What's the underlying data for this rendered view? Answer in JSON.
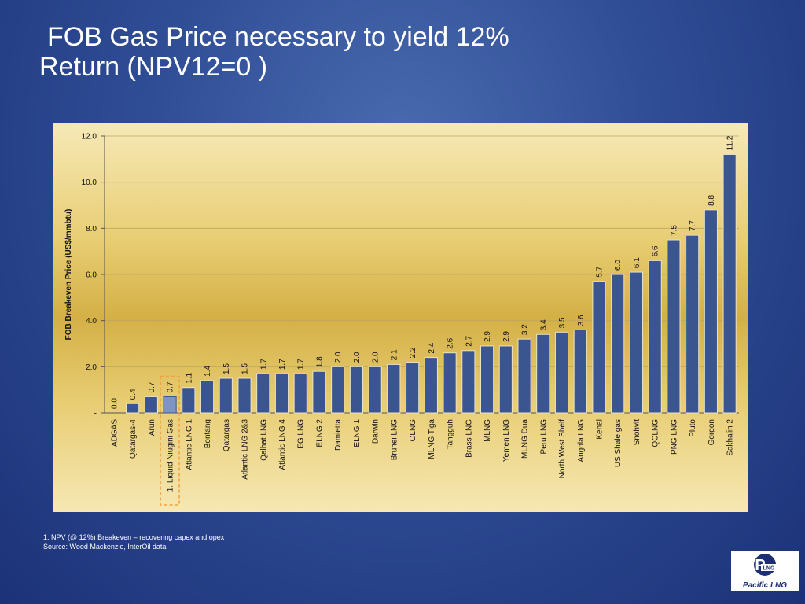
{
  "title_line1": "FOB Gas Price necessary to  yield 12%",
  "title_line2": "Return  (NPV12=0 )",
  "footnote_line1": "1. NPV (@ 12%) Breakeven – recovering capex and opex",
  "footnote_line2": "Source: Wood Mackenzie, InterOil data",
  "logo": {
    "mark": "P",
    "mark_sub": "LNG",
    "name": "Pacific LNG"
  },
  "colors": {
    "bar": "#3b5591",
    "highlight_bar": "#7e95c4",
    "highlight_outline": "#f2a03a"
  },
  "chart_data": {
    "type": "bar",
    "ylabel": "FOB Breakeven Price (US$/mmbtu)",
    "ylim": [
      0,
      12
    ],
    "yticks": [
      0,
      2,
      4,
      6,
      8,
      10,
      12
    ],
    "ytick_labels": [
      "-",
      "2.0",
      "4.0",
      "6.0",
      "8.0",
      "10.0",
      "12.0"
    ],
    "grid": true,
    "highlight_category": "1. Liquid Niugini Gas",
    "categories": [
      "ADGAS",
      "Qatargas-4",
      "Arun",
      "1. Liquid Niugini Gas",
      "Atlantic LNG 1",
      "Bontang",
      "Qatargas",
      "Atlantic LNG 2&3",
      "Qalhat LNG",
      "Atlantic LNG 4",
      "EG LNG",
      "ELNG 2",
      "Damietta",
      "ELNG 1",
      "Darwin",
      "Brunei LNG",
      "OLNG",
      "MLNG Tiga",
      "Tangguh",
      "Brass LNG",
      "MLNG",
      "Yemen LNG",
      "MLNG Dua",
      "Peru LNG",
      "North West Shelf",
      "Angola LNG",
      "Kenai",
      "US Shale gas",
      "Snohvit",
      "QCLNG",
      "PNG LNG",
      "Pluto",
      "Gorgon",
      "Sakhalin 2"
    ],
    "values": [
      0.0,
      0.4,
      0.7,
      0.7,
      1.1,
      1.4,
      1.5,
      1.5,
      1.7,
      1.7,
      1.7,
      1.8,
      2.0,
      2.0,
      2.0,
      2.1,
      2.2,
      2.4,
      2.6,
      2.7,
      2.9,
      2.9,
      3.2,
      3.4,
      3.5,
      3.6,
      5.7,
      6.0,
      6.1,
      6.6,
      7.5,
      7.7,
      8.8,
      11.2
    ],
    "value_labels": [
      "0.0",
      "0.4",
      "0.7",
      "0.7",
      "1.1",
      "1.4",
      "1.5",
      "1.5",
      "1.7",
      "1.7",
      "1.7",
      "1.8",
      "2.0",
      "2.0",
      "2.0",
      "2.1",
      "2.2",
      "2.4",
      "2.6",
      "2.7",
      "2.9",
      "2.9",
      "3.2",
      "3.4",
      "3.5",
      "3.6",
      "5.7",
      "6.0",
      "6.1",
      "6.6",
      "7.5",
      "7.7",
      "8.8",
      "11.2"
    ]
  }
}
